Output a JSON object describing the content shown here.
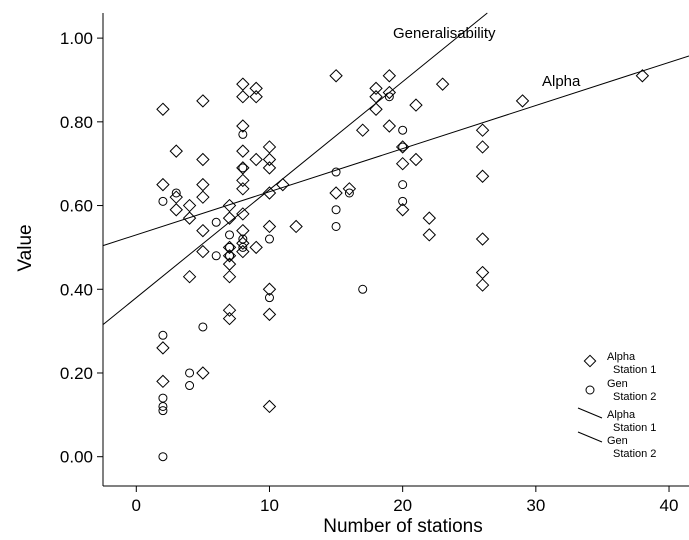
{
  "chart_data": {
    "type": "scatter",
    "xlabel": "Number of stations",
    "ylabel": "Value",
    "xlim": [
      -2.5,
      41.5
    ],
    "ylim": [
      -0.07,
      1.06
    ],
    "xticks": [
      0,
      10,
      20,
      30,
      40
    ],
    "xtick_labels": [
      "0",
      "10",
      "20",
      "30",
      "40"
    ],
    "yticks": [
      0,
      0.2,
      0.4,
      0.6,
      0.8,
      1.0
    ],
    "ytick_labels": [
      "0.00",
      "0.20",
      "0.40",
      "0.60",
      "0.80",
      "1.00"
    ],
    "grid": false,
    "legend_position": "bottom-right",
    "series": [
      {
        "name": "Alpha Station 1",
        "marker": "diamond",
        "points": [
          [
            2,
            0.83
          ],
          [
            2,
            0.65
          ],
          [
            2,
            0.18
          ],
          [
            2,
            0.26
          ],
          [
            3,
            0.73
          ],
          [
            3,
            0.62
          ],
          [
            3,
            0.59
          ],
          [
            4,
            0.6
          ],
          [
            4,
            0.57
          ],
          [
            4,
            0.43
          ],
          [
            5,
            0.85
          ],
          [
            5,
            0.71
          ],
          [
            5,
            0.65
          ],
          [
            5,
            0.62
          ],
          [
            5,
            0.54
          ],
          [
            5,
            0.49
          ],
          [
            5,
            0.2
          ],
          [
            7,
            0.6
          ],
          [
            7,
            0.57
          ],
          [
            7,
            0.5
          ],
          [
            7,
            0.48
          ],
          [
            7,
            0.46
          ],
          [
            7,
            0.43
          ],
          [
            7,
            0.35
          ],
          [
            7,
            0.33
          ],
          [
            8,
            0.89
          ],
          [
            8,
            0.86
          ],
          [
            8,
            0.79
          ],
          [
            8,
            0.73
          ],
          [
            8,
            0.69
          ],
          [
            8,
            0.66
          ],
          [
            8,
            0.64
          ],
          [
            8,
            0.58
          ],
          [
            8,
            0.54
          ],
          [
            8,
            0.51
          ],
          [
            8,
            0.49
          ],
          [
            9,
            0.88
          ],
          [
            9,
            0.86
          ],
          [
            9,
            0.71
          ],
          [
            9,
            0.5
          ],
          [
            10,
            0.74
          ],
          [
            10,
            0.71
          ],
          [
            10,
            0.69
          ],
          [
            10,
            0.63
          ],
          [
            10,
            0.55
          ],
          [
            10,
            0.4
          ],
          [
            10,
            0.34
          ],
          [
            10,
            0.12
          ],
          [
            11,
            0.65
          ],
          [
            12,
            0.55
          ],
          [
            15,
            0.91
          ],
          [
            15,
            0.63
          ],
          [
            16,
            0.64
          ],
          [
            17,
            0.78
          ],
          [
            18,
            0.88
          ],
          [
            18,
            0.86
          ],
          [
            18,
            0.83
          ],
          [
            19,
            0.91
          ],
          [
            19,
            0.87
          ],
          [
            19,
            0.79
          ],
          [
            20,
            0.74
          ],
          [
            20,
            0.7
          ],
          [
            20,
            0.59
          ],
          [
            21,
            0.84
          ],
          [
            21,
            0.71
          ],
          [
            22,
            0.57
          ],
          [
            22,
            0.53
          ],
          [
            23,
            0.89
          ],
          [
            26,
            0.78
          ],
          [
            26,
            0.74
          ],
          [
            26,
            0.67
          ],
          [
            26,
            0.52
          ],
          [
            26,
            0.44
          ],
          [
            26,
            0.41
          ],
          [
            29,
            0.85
          ],
          [
            38,
            0.91
          ]
        ]
      },
      {
        "name": "Gen Station 2",
        "marker": "circle",
        "points": [
          [
            2,
            0.61
          ],
          [
            2,
            0.29
          ],
          [
            2,
            0.14
          ],
          [
            2,
            0.12
          ],
          [
            2,
            0.11
          ],
          [
            2,
            0.0
          ],
          [
            3,
            0.63
          ],
          [
            4,
            0.2
          ],
          [
            4,
            0.17
          ],
          [
            5,
            0.31
          ],
          [
            6,
            0.56
          ],
          [
            6,
            0.48
          ],
          [
            7,
            0.53
          ],
          [
            7,
            0.5
          ],
          [
            7,
            0.48
          ],
          [
            8,
            0.77
          ],
          [
            8,
            0.69
          ],
          [
            8,
            0.52
          ],
          [
            8,
            0.5
          ],
          [
            10,
            0.52
          ],
          [
            10,
            0.38
          ],
          [
            15,
            0.68
          ],
          [
            15,
            0.59
          ],
          [
            15,
            0.55
          ],
          [
            16,
            0.63
          ],
          [
            17,
            0.4
          ],
          [
            19,
            0.86
          ],
          [
            20,
            0.78
          ],
          [
            20,
            0.74
          ],
          [
            20,
            0.65
          ],
          [
            20,
            0.61
          ]
        ]
      }
    ],
    "fit_lines": [
      {
        "name": "Generalisability",
        "legend": "Gen Station 2",
        "intercept": 0.38,
        "slope": 0.0258
      },
      {
        "name": "Alpha",
        "legend": "Alpha Station 1",
        "intercept": 0.53,
        "slope": 0.0103
      }
    ],
    "line_labels": [
      "Generalisability",
      "Alpha"
    ],
    "legend": [
      {
        "line1": "Alpha",
        "line2": "Station 1",
        "symbol": "diamond"
      },
      {
        "line1": "Gen",
        "line2": "Station 2",
        "symbol": "circle"
      },
      {
        "line1": "Alpha",
        "line2": "Station 1",
        "symbol": "line"
      },
      {
        "line1": "Gen",
        "line2": "Station 2",
        "symbol": "line"
      }
    ],
    "colors": {
      "marker": "#000000",
      "line": "#000000",
      "background": "#ffffff"
    }
  }
}
